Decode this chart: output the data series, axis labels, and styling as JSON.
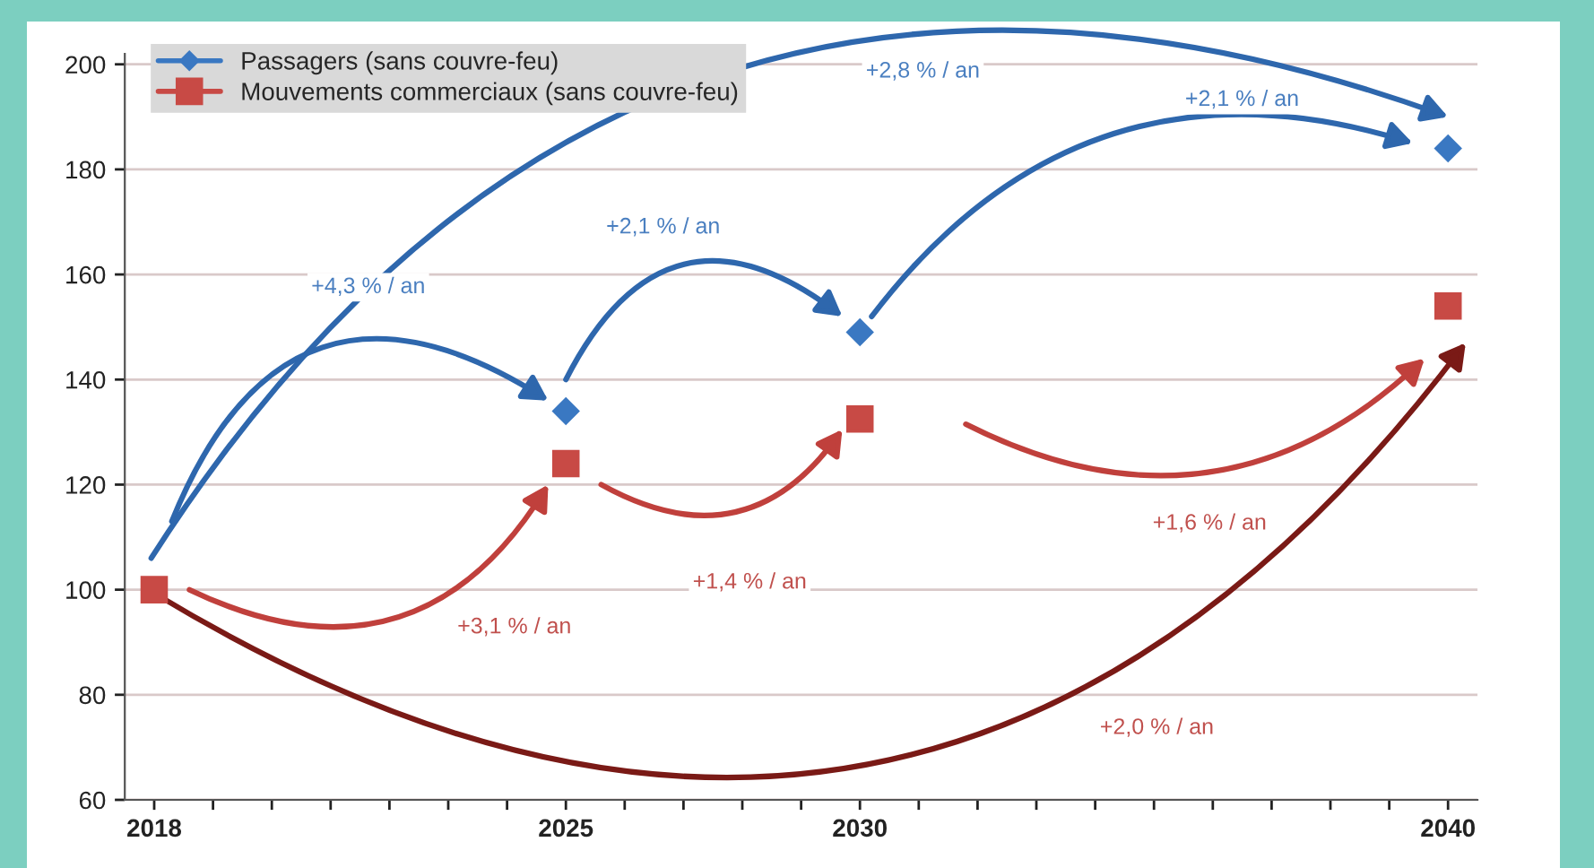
{
  "chart_data": {
    "type": "scatter",
    "x": [
      2018,
      2025,
      2030,
      2040
    ],
    "series": [
      {
        "name": "Passagers (sans couvre-feu)",
        "color": "#3a78c2",
        "marker": "diamond",
        "values": [
          null,
          134,
          149,
          184
        ]
      },
      {
        "name": "Mouvements commerciaux (sans couvre-feu)",
        "color": "#c84a45",
        "marker": "square",
        "values": [
          100,
          124,
          132.5,
          154
        ]
      }
    ],
    "xlim": [
      2017.5,
      2040.5
    ],
    "xticks": [
      2018,
      {
        "value": 2019,
        "label": null
      },
      {
        "value": 2020,
        "label": null
      },
      {
        "value": 2021,
        "label": null
      },
      {
        "value": 2022,
        "label": null
      },
      {
        "value": 2023,
        "label": null
      },
      {
        "value": 2024,
        "label": null
      },
      2025,
      {
        "value": 2026,
        "label": null
      },
      {
        "value": 2027,
        "label": null
      },
      {
        "value": 2028,
        "label": null
      },
      {
        "value": 2029,
        "label": null
      },
      2030,
      {
        "value": 2031,
        "label": null
      },
      {
        "value": 2032,
        "label": null
      },
      {
        "value": 2033,
        "label": null
      },
      {
        "value": 2034,
        "label": null
      },
      {
        "value": 2035,
        "label": null
      },
      {
        "value": 2036,
        "label": null
      },
      {
        "value": 2037,
        "label": null
      },
      {
        "value": 2038,
        "label": null
      },
      {
        "value": 2039,
        "label": null
      },
      2040
    ],
    "ylim": [
      60,
      202
    ],
    "yticks": [
      60,
      80,
      100,
      120,
      140,
      160,
      180,
      200
    ],
    "grid": "y",
    "legend": "top left",
    "annotations": [
      "+4,3 % / an",
      "+2,1 % / an",
      "+2,1 % / an",
      "+2,8 % / an",
      "+3,1 % / an",
      "+1,4 % / an",
      "+1,6 % / an",
      "+2,0 % / an"
    ]
  }
}
